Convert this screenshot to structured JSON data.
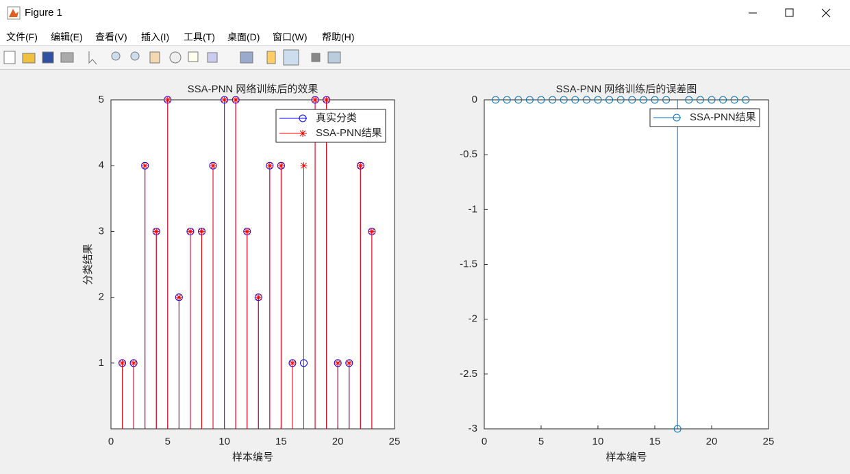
{
  "window": {
    "title": "Figure 1",
    "menu": [
      "文件(F)",
      "编辑(E)",
      "查看(V)",
      "插入(I)",
      "工具(T)",
      "桌面(D)",
      "窗口(W)",
      "帮助(H)"
    ]
  },
  "chart_data": [
    {
      "type": "stem",
      "title": "SSA-PNN 网络训练后的效果",
      "x_label": "样本编号",
      "y_label": "分类结果",
      "x": [
        1,
        2,
        3,
        4,
        5,
        6,
        7,
        8,
        9,
        10,
        11,
        12,
        13,
        14,
        15,
        16,
        17,
        18,
        19,
        20,
        21,
        22,
        23
      ],
      "series": [
        {
          "name": "真实分类",
          "color": "#0000ff",
          "marker": "o",
          "values": [
            1,
            1,
            4,
            3,
            5,
            2,
            3,
            3,
            4,
            5,
            5,
            3,
            2,
            4,
            4,
            1,
            1,
            5,
            5,
            1,
            1,
            4,
            3
          ]
        },
        {
          "name": "SSA-PNN结果",
          "color": "#ff0000",
          "marker": "*",
          "values": [
            1,
            1,
            4,
            3,
            5,
            2,
            3,
            3,
            4,
            5,
            5,
            3,
            2,
            4,
            4,
            1,
            4,
            5,
            5,
            1,
            1,
            4,
            3
          ]
        }
      ],
      "xlim": [
        0,
        25
      ],
      "xticks": [
        0,
        5,
        10,
        15,
        20,
        25
      ],
      "ylim": [
        0,
        5
      ],
      "yticks": [
        1,
        2,
        3,
        4,
        5
      ],
      "legend": "northeast"
    },
    {
      "type": "stem",
      "title": "SSA-PNN 网络训练后的误差图",
      "x_label": "样本编号",
      "x": [
        1,
        2,
        3,
        4,
        5,
        6,
        7,
        8,
        9,
        10,
        11,
        12,
        13,
        14,
        15,
        16,
        17,
        18,
        19,
        20,
        21,
        22,
        23
      ],
      "series": [
        {
          "name": "SSA-PNN结果",
          "color": "#0072bd",
          "marker": "o",
          "values": [
            0,
            0,
            0,
            0,
            0,
            0,
            0,
            0,
            0,
            0,
            0,
            0,
            0,
            0,
            0,
            0,
            -3,
            0,
            0,
            0,
            0,
            0,
            0
          ]
        }
      ],
      "xlim": [
        0,
        25
      ],
      "xticks": [
        0,
        5,
        10,
        15,
        20,
        25
      ],
      "ylim": [
        -3,
        0
      ],
      "yticks": [
        -3,
        -2.5,
        -2,
        -1.5,
        -1,
        -0.5,
        0
      ],
      "legend": "northeast"
    }
  ]
}
